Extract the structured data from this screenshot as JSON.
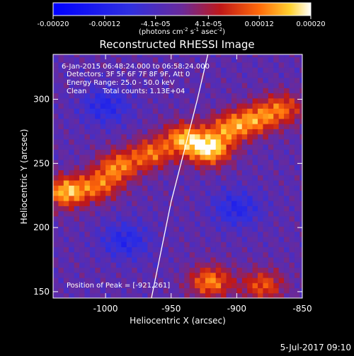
{
  "colorbar": {
    "tick_labels": [
      "-0.00020",
      "-0.00012",
      "-4.1e-05",
      "4.1e-05",
      "0.00012",
      "0.00020"
    ],
    "tick_values": [
      -0.0002,
      -0.00012,
      -4.1e-05,
      4.1e-05,
      0.00012,
      0.0002
    ],
    "range": [
      -0.0002,
      0.0002
    ],
    "units_prefix": "(photons cm",
    "units_exp1": "-2",
    "units_mid": " s",
    "units_exp2": "-1",
    "units_mid2": " asec",
    "units_exp3": "-2",
    "units_suffix": ")"
  },
  "annotations": {
    "time_range": "6-Jan-2015 06:48:24.000 to 06:58:24.000",
    "detectors": "Detectors: 3F 5F 6F 7F 8F 9F, Att 0",
    "energy": "Energy Range: 25.0 - 50.0 keV",
    "clean": "Clean",
    "counts": "Total counts: 1.13E+04",
    "peak": "Position of Peak = [-921,261]"
  },
  "footer_date": "5-Jul-2017 09:10",
  "chart_data": {
    "type": "heatmap",
    "title": "Reconstructed RHESSI Image",
    "xlabel": "Heliocentric X (arcsec)",
    "ylabel": "Heliocentric Y (arcsec)",
    "xlim": [
      -1040,
      -850
    ],
    "ylim": [
      145,
      335
    ],
    "x_ticks": [
      -1000,
      -950,
      -900,
      -850
    ],
    "x_tick_labels": [
      "-1000",
      "-950",
      "-900",
      "-850"
    ],
    "y_ticks": [
      150,
      200,
      250,
      300
    ],
    "y_tick_labels": [
      "150",
      "200",
      "250",
      "300"
    ],
    "peak_position": [
      -921,
      261
    ],
    "colormap": "rhessi-blue-purple-red-yellow-white",
    "colors": {
      "negative_low": "#0000ff",
      "zero": "#5a2ca0",
      "mid_positive": "#e0201a",
      "high_positive": "#ffb21e",
      "max": "#ffffff"
    },
    "limb_curve": [
      [
        -965,
        145
      ],
      [
        -958,
        180
      ],
      [
        -950,
        220
      ],
      [
        -940,
        260
      ],
      [
        -930,
        300
      ],
      [
        -922,
        335
      ]
    ],
    "emission_ridge": [
      {
        "x": -1030,
        "y": 228,
        "intensity": 0.00018
      },
      {
        "x": -1005,
        "y": 233,
        "intensity": 0.00012
      },
      {
        "x": -990,
        "y": 248,
        "intensity": 0.00014
      },
      {
        "x": -965,
        "y": 258,
        "intensity": 0.00013
      },
      {
        "x": -940,
        "y": 270,
        "intensity": 0.00016
      },
      {
        "x": -921,
        "y": 261,
        "intensity": 0.0002
      },
      {
        "x": -905,
        "y": 278,
        "intensity": 0.00014
      },
      {
        "x": -885,
        "y": 285,
        "intensity": 0.00013
      },
      {
        "x": -865,
        "y": 293,
        "intensity": 0.00012
      }
    ],
    "lower_source": [
      {
        "x": -920,
        "y": 158,
        "intensity": 0.00015
      },
      {
        "x": -880,
        "y": 155,
        "intensity": 0.00012
      }
    ],
    "negative_regions": [
      {
        "x": -1000,
        "y": 295,
        "intensity": -8e-05
      },
      {
        "x": -985,
        "y": 190,
        "intensity": -8e-05
      },
      {
        "x": -900,
        "y": 215,
        "intensity": -8e-05
      }
    ]
  }
}
